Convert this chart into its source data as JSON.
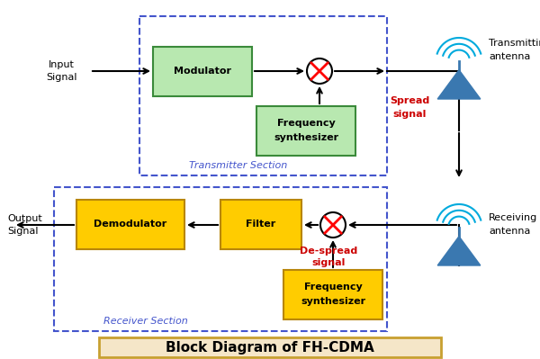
{
  "bg_color": "#ffffff",
  "title": "Block Diagram of FH-CDMA",
  "title_bg": "#f5e6c8",
  "title_border": "#c8a030",
  "transmitter_section_label": "Transmitter Section",
  "receiver_section_label": "Receiver Section",
  "modulator_color": "#b8e8b0",
  "modulator_border": "#3a8a3a",
  "filter_color": "#ffcc00",
  "filter_border": "#b8860b",
  "demodulator_color": "#ffcc00",
  "demodulator_border": "#b8860b",
  "freq_synth_tx_color": "#b8e8b0",
  "freq_synth_tx_border": "#3a8a3a",
  "freq_synth_rx_color": "#ffcc00",
  "freq_synth_rx_border": "#b8860b",
  "spread_signal_color": "#cc0000",
  "despread_signal_color": "#cc0000",
  "antenna_color": "#3a78b0",
  "wave_color": "#00aadd",
  "dashed_box_color": "#4455cc",
  "arrow_color": "#000000",
  "label_fontsize": 8,
  "block_fontsize": 8,
  "section_fontsize": 8,
  "title_fontsize": 11
}
